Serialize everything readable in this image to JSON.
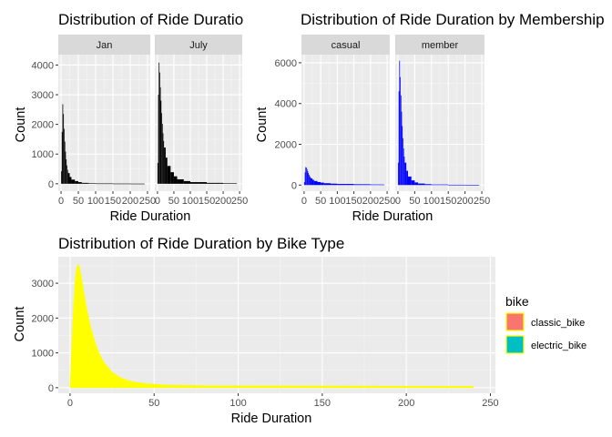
{
  "chart_data": [
    {
      "id": "by_month",
      "type": "bar",
      "title": "Distribution of Ride Duratio",
      "xlabel": "Ride Duration",
      "ylabel": "Count",
      "xlim": [
        -8,
        258
      ],
      "ylim": [
        -250,
        4350
      ],
      "xticks": [
        0,
        50,
        100,
        150,
        200,
        250
      ],
      "xtick_labels": [
        "0",
        "50",
        "100",
        "150",
        "200",
        "250"
      ],
      "yticks": [
        0,
        1000,
        2000,
        3000,
        4000
      ],
      "ytick_labels": [
        "0",
        "1000",
        "2000",
        "3000",
        "4000"
      ],
      "bar_color": "#000000",
      "facets": [
        {
          "label": "Jan",
          "bins": [
            0,
            2,
            4,
            6,
            8,
            10,
            12,
            14,
            16,
            18,
            20,
            25,
            30,
            40,
            50,
            60,
            80,
            100,
            150,
            200,
            240
          ],
          "counts": [
            420,
            1750,
            2680,
            2350,
            1850,
            1420,
            1080,
            820,
            620,
            470,
            360,
            230,
            140,
            90,
            55,
            30,
            18,
            10,
            6,
            4,
            3
          ]
        },
        {
          "label": "July",
          "bins": [
            0,
            2,
            4,
            6,
            8,
            10,
            12,
            14,
            16,
            18,
            20,
            25,
            30,
            40,
            50,
            60,
            80,
            100,
            150,
            200,
            240
          ],
          "counts": [
            700,
            3000,
            4080,
            3750,
            3250,
            2800,
            2380,
            2020,
            1700,
            1440,
            1220,
            880,
            600,
            390,
            250,
            150,
            90,
            55,
            30,
            16,
            10
          ]
        }
      ]
    },
    {
      "id": "by_membership",
      "type": "bar",
      "title": "Distribution of Ride Duration by Membership",
      "xlabel": "Ride Duration",
      "ylabel": "Count",
      "xlim": [
        -8,
        258
      ],
      "ylim": [
        -300,
        6400
      ],
      "xticks": [
        0,
        50,
        100,
        150,
        200,
        250
      ],
      "xtick_labels": [
        "0",
        "50",
        "100",
        "150",
        "200",
        "250"
      ],
      "yticks": [
        0,
        2000,
        4000,
        6000
      ],
      "ytick_labels": [
        "0",
        "2000",
        "4000",
        "6000"
      ],
      "bar_color": "#0000ff",
      "facets": [
        {
          "label": "casual",
          "bins": [
            0,
            2,
            4,
            6,
            8,
            10,
            12,
            14,
            16,
            18,
            20,
            25,
            30,
            40,
            50,
            60,
            80,
            100,
            150,
            200,
            240
          ],
          "counts": [
            150,
            620,
            880,
            860,
            780,
            680,
            590,
            510,
            440,
            380,
            330,
            260,
            200,
            150,
            120,
            90,
            70,
            55,
            40,
            28,
            20
          ]
        },
        {
          "label": "member",
          "bins": [
            0,
            2,
            4,
            6,
            8,
            10,
            12,
            14,
            16,
            18,
            20,
            25,
            30,
            40,
            50,
            60,
            80,
            100,
            150,
            200,
            240
          ],
          "counts": [
            1100,
            4600,
            6100,
            5300,
            4400,
            3600,
            2900,
            2300,
            1800,
            1400,
            1100,
            700,
            420,
            230,
            130,
            75,
            45,
            28,
            15,
            8,
            5
          ]
        }
      ]
    },
    {
      "id": "by_bike_type",
      "type": "area",
      "title": "Distribution of Ride Duration by Bike Type",
      "xlabel": "Ride Duration",
      "ylabel": "Count",
      "xlim": [
        -7,
        253
      ],
      "ylim": [
        -160,
        3760
      ],
      "xticks": [
        0,
        50,
        100,
        150,
        200,
        250
      ],
      "xtick_labels": [
        "0",
        "50",
        "100",
        "150",
        "200",
        "250"
      ],
      "yticks": [
        0,
        1000,
        2000,
        3000
      ],
      "ytick_labels": [
        "0",
        "1000",
        "2000",
        "3000"
      ],
      "fill_color": "#ffff00",
      "x": [
        0,
        1,
        2,
        3,
        4,
        5,
        6,
        7,
        8,
        10,
        12,
        14,
        16,
        18,
        20,
        25,
        30,
        35,
        40,
        45,
        50,
        55,
        60,
        80,
        100,
        150,
        200,
        240
      ],
      "y": [
        0,
        1200,
        2300,
        3100,
        3480,
        3550,
        3380,
        3100,
        2800,
        2250,
        1800,
        1450,
        1150,
        920,
        740,
        450,
        290,
        200,
        150,
        120,
        100,
        85,
        75,
        60,
        55,
        50,
        45,
        40
      ],
      "legend": {
        "title": "bike",
        "position": "right",
        "entries": [
          {
            "label": "classic_bike",
            "color": "#f8766d"
          },
          {
            "label": "electric_bike",
            "color": "#00bfc4"
          }
        ],
        "key_border_color": "#ffff00"
      }
    }
  ],
  "style": {
    "panel_bg": "#ebebeb",
    "grid_major": "#ffffff",
    "grid_minor": "#f5f5f5",
    "strip_bg": "#d9d9d9",
    "tick_color": "#333333"
  }
}
